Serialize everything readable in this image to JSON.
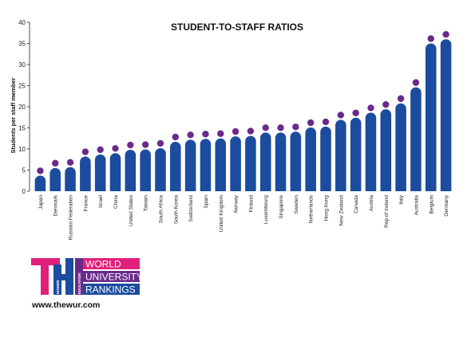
{
  "chart_data": {
    "type": "bar",
    "title": "STUDENT-TO-STAFF RATIOS",
    "xlabel": "",
    "ylabel": "Students per staff member",
    "ylim": [
      0,
      40
    ],
    "yticks": [
      0,
      5,
      10,
      15,
      20,
      25,
      30,
      35,
      40
    ],
    "grid": false,
    "categories": [
      "Japan",
      "Denmark",
      "Russian Federation",
      "France",
      "Israel",
      "China",
      "United States",
      "Taiwan",
      "South Africa",
      "South Korea",
      "Switzerland",
      "Spain",
      "United Kingdom",
      "Norway",
      "Finland",
      "Luxembourg",
      "Singapore",
      "Sweden",
      "Netherlands",
      "Hong Kong",
      "New Zealand",
      "Canada",
      "Austria",
      "Rep of Ireland",
      "Italy",
      "Australia",
      "Belgium",
      "Germany"
    ],
    "values": [
      3.7,
      5.5,
      5.7,
      8.2,
      8.7,
      9.0,
      9.8,
      9.9,
      10.2,
      11.7,
      12.2,
      12.4,
      12.5,
      13.0,
      13.1,
      13.9,
      13.9,
      14.1,
      15.1,
      15.3,
      16.9,
      17.4,
      18.6,
      19.4,
      20.8,
      24.6,
      35.0,
      36.0
    ],
    "bar_color": "#1b4c9e",
    "dot_color": "#6a2a8c"
  },
  "logo": {
    "letters": "THE",
    "vertical_words": [
      "TIMES",
      "HIGHER",
      "EDUCATION"
    ],
    "lines": [
      "WORLD",
      "UNIVERSITY",
      "RANKINGS"
    ],
    "colors": {
      "pink": "#e0207a",
      "blue": "#1b4c9e",
      "purple": "#6a2a8c"
    }
  },
  "website": "www.thewur.com"
}
